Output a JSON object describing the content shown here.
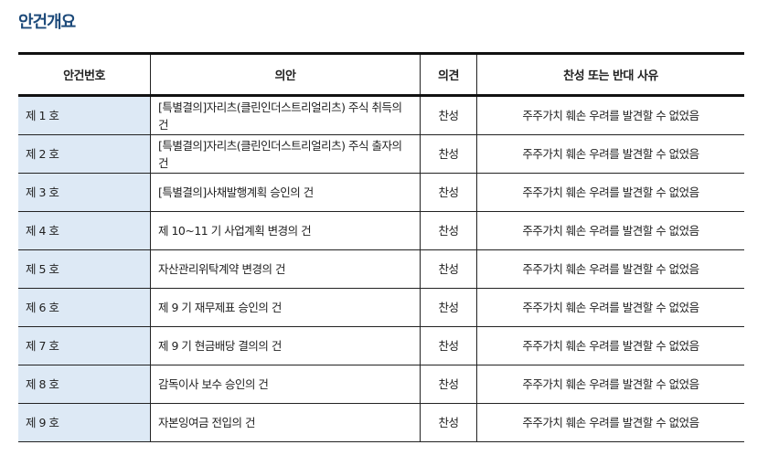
{
  "title": "안건개요",
  "headers": [
    "안건번호",
    "의안",
    "의견",
    "찬성 또는 반대 사유"
  ],
  "rows": [
    {
      "num": "제 1 호",
      "agenda": "[특별결의]자리츠(클린인더스트리얼리츠) 주식 취득의 건",
      "opinion": "찬성",
      "reason": "주주가치 훼손 우려를 발견할 수 없었음"
    },
    {
      "num": "제 2 호",
      "agenda": "[특별결의]자리츠(클린인더스트리얼리츠) 주식 출자의 건",
      "opinion": "찬성",
      "reason": "주주가치 훼손 우려를 발견할 수 없었음"
    },
    {
      "num": "제 3 호",
      "agenda": "[특별결의]사채발행계획 승인의 건",
      "opinion": "찬성",
      "reason": "주주가치 훼손 우려를 발견할 수 없었음"
    },
    {
      "num": "제 4 호",
      "agenda": "제 10~11 기 사업계획 변경의 건",
      "opinion": "찬성",
      "reason": "주주가치 훼손 우려를 발견할 수 없었음"
    },
    {
      "num": "제 5 호",
      "agenda": "자산관리위탁계약 변경의 건",
      "opinion": "찬성",
      "reason": "주주가치 훼손 우려를 발견할 수 없었음"
    },
    {
      "num": "제 6 호",
      "agenda": "제 9 기 재무제표 승인의 건",
      "opinion": "찬성",
      "reason": "주주가치 훼손 우려를 발견할 수 없었음"
    },
    {
      "num": "제 7 호",
      "agenda": "제 9 기 현금배당 결의의 건",
      "opinion": "찬성",
      "reason": "주주가치 훼손 우려를 발견할 수 없었음"
    },
    {
      "num": "제 8 호",
      "agenda": "감독이사 보수 승인의 건",
      "opinion": "찬성",
      "reason": "주주가치 훼손 우려를 발견할 수 없었음"
    },
    {
      "num": "제 9 호",
      "agenda": "자본잉여금 전입의 건",
      "opinion": "찬성",
      "reason": "주주가치 훼손 우려를 발견할 수 없었음"
    }
  ]
}
